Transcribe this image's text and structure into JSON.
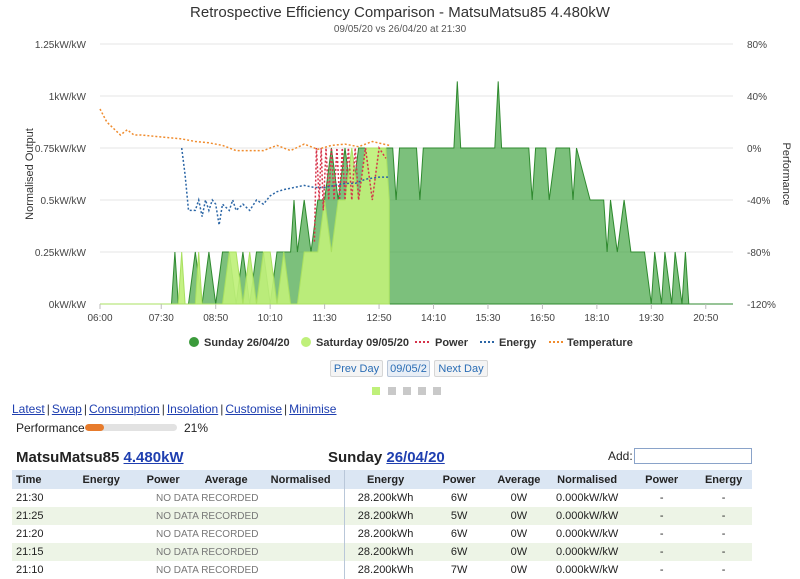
{
  "chart_data": {
    "type": "area",
    "title": "Retrospective Efficiency Comparison - MatsuMatsu85 4.480kW",
    "subtitle": "09/05/20 vs 26/04/20 at 21:30",
    "ylabel": "Normalised Output",
    "ylabel_right": "Performance",
    "ylim": [
      0,
      1.25
    ],
    "ylim_right": [
      -120,
      80
    ],
    "xlim": [
      "06:00",
      "21:30"
    ],
    "y_ticks": [
      "0kW/kW",
      "0.25kW/kW",
      "0.5kW/kW",
      "0.75kW/kW",
      "1kW/kW",
      "1.25kW/kW"
    ],
    "y_ticks_right": [
      "-120%",
      "-80%",
      "-40%",
      "0%",
      "40%",
      "80%"
    ],
    "x_ticks": [
      "06:00",
      "07:30",
      "08:50",
      "10:10",
      "11:30",
      "12:50",
      "14:10",
      "15:30",
      "16:50",
      "18:10",
      "19:30",
      "20:50"
    ],
    "grid": true,
    "legend_position": "bottom",
    "series": [
      {
        "name": "Sunday 26/04/20",
        "kind": "area",
        "color": "#4aa84a",
        "points": [
          [
            "06:00",
            0
          ],
          [
            "07:45",
            0
          ],
          [
            "07:50",
            0.25
          ],
          [
            "07:55",
            0
          ],
          [
            "08:10",
            0
          ],
          [
            "08:20",
            0.25
          ],
          [
            "08:30",
            0
          ],
          [
            "08:40",
            0.25
          ],
          [
            "08:50",
            0
          ],
          [
            "09:00",
            0.25
          ],
          [
            "09:10",
            0.25
          ],
          [
            "09:20",
            0
          ],
          [
            "09:30",
            0.25
          ],
          [
            "09:40",
            0
          ],
          [
            "09:50",
            0.25
          ],
          [
            "10:00",
            0.25
          ],
          [
            "10:10",
            0
          ],
          [
            "10:20",
            0.25
          ],
          [
            "10:40",
            0.25
          ],
          [
            "10:45",
            0.5
          ],
          [
            "10:50",
            0.25
          ],
          [
            "11:00",
            0.5
          ],
          [
            "11:10",
            0.25
          ],
          [
            "11:20",
            0.5
          ],
          [
            "11:30",
            0.5
          ],
          [
            "11:40",
            0.75
          ],
          [
            "11:50",
            0.5
          ],
          [
            "12:00",
            0.75
          ],
          [
            "12:10",
            0.5
          ],
          [
            "12:20",
            0.75
          ],
          [
            "12:30",
            0.75
          ],
          [
            "12:40",
            0.5
          ],
          [
            "12:50",
            0.75
          ],
          [
            "13:10",
            0.75
          ],
          [
            "13:15",
            0.5
          ],
          [
            "13:20",
            0.75
          ],
          [
            "13:45",
            0.75
          ],
          [
            "13:50",
            0.5
          ],
          [
            "13:55",
            0.75
          ],
          [
            "14:40",
            0.75
          ],
          [
            "14:45",
            1.07
          ],
          [
            "14:50",
            0.75
          ],
          [
            "15:40",
            0.75
          ],
          [
            "15:45",
            1.07
          ],
          [
            "15:50",
            0.75
          ],
          [
            "16:30",
            0.75
          ],
          [
            "16:35",
            0.5
          ],
          [
            "16:40",
            0.75
          ],
          [
            "16:55",
            0.75
          ],
          [
            "17:00",
            0.5
          ],
          [
            "17:10",
            0.75
          ],
          [
            "17:30",
            0.75
          ],
          [
            "17:35",
            0.5
          ],
          [
            "17:40",
            0.75
          ],
          [
            "18:00",
            0.5
          ],
          [
            "18:20",
            0.5
          ],
          [
            "18:25",
            0.25
          ],
          [
            "18:30",
            0.5
          ],
          [
            "18:40",
            0.25
          ],
          [
            "18:50",
            0.5
          ],
          [
            "19:00",
            0.25
          ],
          [
            "19:20",
            0.25
          ],
          [
            "19:30",
            0
          ],
          [
            "19:35",
            0.25
          ],
          [
            "19:45",
            0
          ],
          [
            "19:50",
            0.25
          ],
          [
            "20:00",
            0
          ],
          [
            "20:05",
            0.25
          ],
          [
            "20:15",
            0
          ],
          [
            "20:20",
            0.25
          ],
          [
            "20:25",
            0
          ],
          [
            "21:30",
            0
          ]
        ]
      },
      {
        "name": "Saturday 09/05/20",
        "kind": "area",
        "color": "#bff07a",
        "points": [
          [
            "06:00",
            0
          ],
          [
            "07:55",
            0
          ],
          [
            "08:00",
            0.25
          ],
          [
            "08:05",
            0
          ],
          [
            "08:20",
            0
          ],
          [
            "08:25",
            0.25
          ],
          [
            "08:30",
            0
          ],
          [
            "09:00",
            0
          ],
          [
            "09:10",
            0.25
          ],
          [
            "09:20",
            0.25
          ],
          [
            "09:30",
            0
          ],
          [
            "09:40",
            0.25
          ],
          [
            "09:50",
            0
          ],
          [
            "10:00",
            0.25
          ],
          [
            "10:10",
            0.25
          ],
          [
            "10:20",
            0
          ],
          [
            "10:30",
            0.25
          ],
          [
            "10:40",
            0
          ],
          [
            "10:50",
            0
          ],
          [
            "11:00",
            0.25
          ],
          [
            "11:20",
            0.25
          ],
          [
            "11:30",
            0.5
          ],
          [
            "11:40",
            0.25
          ],
          [
            "11:50",
            0.5
          ],
          [
            "12:00",
            0.5
          ],
          [
            "12:10",
            0.75
          ],
          [
            "12:20",
            0.5
          ],
          [
            "12:30",
            0.75
          ],
          [
            "12:40",
            0.75
          ],
          [
            "12:45",
            0.75
          ],
          [
            "12:50",
            0.75
          ],
          [
            "13:00",
            0.75
          ],
          [
            "13:05",
            0.5
          ],
          [
            "13:05",
            0
          ]
        ]
      },
      {
        "name": "Power",
        "kind": "line",
        "dash": "dotted",
        "color": "#d6334a",
        "points": [
          [
            "11:15",
            0.3
          ],
          [
            "11:18",
            0.75
          ],
          [
            "11:22",
            0.5
          ],
          [
            "11:25",
            0.75
          ],
          [
            "11:28",
            0.45
          ],
          [
            "11:32",
            0.75
          ],
          [
            "11:36",
            0.5
          ],
          [
            "11:40",
            0.75
          ],
          [
            "11:44",
            0.5
          ],
          [
            "11:48",
            0.75
          ],
          [
            "11:52",
            0.5
          ],
          [
            "11:56",
            0.75
          ],
          [
            "12:00",
            0.5
          ],
          [
            "12:05",
            0.75
          ],
          [
            "12:10",
            0.5
          ],
          [
            "12:15",
            0.75
          ],
          [
            "12:20",
            0.5
          ],
          [
            "12:30",
            0.75
          ],
          [
            "12:40",
            0.5
          ],
          [
            "12:50",
            0.75
          ],
          [
            "13:00",
            0.7
          ]
        ]
      },
      {
        "name": "Energy",
        "kind": "line",
        "dash": "dotted",
        "color": "#2b66a6",
        "points": [
          [
            "08:00",
            0.75
          ],
          [
            "08:05",
            0.62
          ],
          [
            "08:10",
            0.45
          ],
          [
            "08:20",
            0.45
          ],
          [
            "08:25",
            0.5
          ],
          [
            "08:30",
            0.42
          ],
          [
            "08:35",
            0.5
          ],
          [
            "08:40",
            0.45
          ],
          [
            "08:45",
            0.5
          ],
          [
            "08:50",
            0.48
          ],
          [
            "08:55",
            0.38
          ],
          [
            "09:00",
            0.48
          ],
          [
            "09:10",
            0.45
          ],
          [
            "09:15",
            0.5
          ],
          [
            "09:20",
            0.45
          ],
          [
            "09:30",
            0.48
          ],
          [
            "09:40",
            0.45
          ],
          [
            "09:50",
            0.5
          ],
          [
            "10:00",
            0.48
          ],
          [
            "10:10",
            0.52
          ],
          [
            "10:20",
            0.54
          ],
          [
            "10:30",
            0.55
          ],
          [
            "10:45",
            0.56
          ],
          [
            "11:00",
            0.57
          ],
          [
            "11:15",
            0.56
          ],
          [
            "11:30",
            0.56
          ],
          [
            "11:45",
            0.57
          ],
          [
            "12:00",
            0.58
          ],
          [
            "12:15",
            0.58
          ],
          [
            "12:30",
            0.6
          ],
          [
            "12:50",
            0.61
          ],
          [
            "13:05",
            0.61
          ]
        ]
      },
      {
        "name": "Temperature",
        "kind": "line",
        "dash": "dotted",
        "color": "#f08c2e",
        "axis": "right",
        "points": [
          [
            "06:00",
            30
          ],
          [
            "06:10",
            20
          ],
          [
            "06:20",
            15
          ],
          [
            "06:30",
            10
          ],
          [
            "06:40",
            14
          ],
          [
            "06:50",
            10
          ],
          [
            "07:00",
            10
          ],
          [
            "07:20",
            9
          ],
          [
            "07:40",
            8
          ],
          [
            "08:00",
            7
          ],
          [
            "08:20",
            5
          ],
          [
            "08:40",
            4
          ],
          [
            "09:00",
            2
          ],
          [
            "09:20",
            -2
          ],
          [
            "09:40",
            -2
          ],
          [
            "10:00",
            -2
          ],
          [
            "10:20",
            2
          ],
          [
            "10:40",
            -2
          ],
          [
            "11:00",
            3
          ],
          [
            "11:20",
            -1
          ],
          [
            "11:40",
            2
          ],
          [
            "12:00",
            3
          ],
          [
            "12:20",
            1
          ],
          [
            "12:40",
            5
          ],
          [
            "13:05",
            2
          ]
        ]
      }
    ]
  },
  "chart_nav": {
    "prev_label": "Prev Day",
    "date_label": "09/05/2",
    "next_label": "Next Day"
  },
  "links": {
    "latest": "Latest",
    "swap": "Swap",
    "consumption": "Consumption",
    "insolation": "Insolation",
    "customise": "Customise",
    "minimise": "Minimise",
    "separator": "|"
  },
  "performance": {
    "label": "Performance",
    "value_text": "21%",
    "fraction": 0.21
  },
  "left_header": {
    "system_name": "MatsuMatsu85",
    "capacity_link": "4.480kW"
  },
  "right_header": {
    "day_label": "Sunday",
    "date_link": "26/04/20"
  },
  "add": {
    "label": "Add:",
    "value": ""
  },
  "table": {
    "headers": [
      "Time",
      "Energy",
      "Power",
      "Average",
      "Normalised",
      "Energy",
      "Power",
      "Average",
      "Normalised",
      "Power",
      "Energy"
    ],
    "nodata_text": "NO DATA RECORDED",
    "rows": [
      {
        "time": "21:30",
        "energy": "28.200kWh",
        "power": "6W",
        "average": "0W",
        "normalised": "0.000kW/kW",
        "power2": "-",
        "energy2": "-"
      },
      {
        "time": "21:25",
        "energy": "28.200kWh",
        "power": "5W",
        "average": "0W",
        "normalised": "0.000kW/kW",
        "power2": "-",
        "energy2": "-"
      },
      {
        "time": "21:20",
        "energy": "28.200kWh",
        "power": "6W",
        "average": "0W",
        "normalised": "0.000kW/kW",
        "power2": "-",
        "energy2": "-"
      },
      {
        "time": "21:15",
        "energy": "28.200kWh",
        "power": "6W",
        "average": "0W",
        "normalised": "0.000kW/kW",
        "power2": "-",
        "energy2": "-"
      },
      {
        "time": "21:10",
        "energy": "28.200kWh",
        "power": "7W",
        "average": "0W",
        "normalised": "0.000kW/kW",
        "power2": "-",
        "energy2": "-"
      }
    ]
  }
}
